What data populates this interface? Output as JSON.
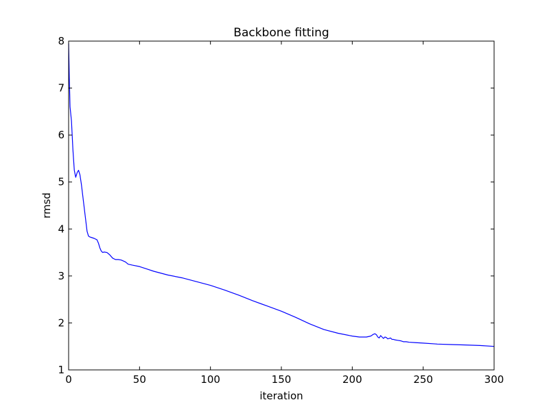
{
  "chart_data": {
    "type": "line",
    "title": "Backbone fitting",
    "xlabel": "iteration",
    "ylabel": "rmsd",
    "xlim": [
      0,
      300
    ],
    "ylim": [
      1,
      8
    ],
    "xticks": [
      0,
      50,
      100,
      150,
      200,
      250,
      300
    ],
    "yticks": [
      1,
      2,
      3,
      4,
      5,
      6,
      7,
      8
    ],
    "grid": false,
    "legend": "none",
    "series": [
      {
        "color": "#0000ff",
        "x": [
          0,
          0.5,
          1,
          2,
          3,
          4,
          5,
          6,
          7,
          8,
          9,
          10,
          11,
          12,
          13,
          14,
          15,
          16,
          18,
          20,
          21,
          22,
          23,
          24,
          25,
          27,
          29,
          31,
          33,
          35,
          37,
          40,
          42,
          45,
          50,
          55,
          60,
          65,
          70,
          80,
          90,
          100,
          110,
          120,
          130,
          140,
          150,
          160,
          170,
          180,
          190,
          200,
          205,
          210,
          213,
          215,
          216,
          217,
          218,
          219,
          220,
          221,
          222,
          223,
          224,
          225,
          226,
          227,
          228,
          229,
          230,
          232,
          234,
          236,
          238,
          240,
          245,
          250,
          260,
          270,
          280,
          290,
          300
        ],
        "y": [
          7.95,
          7.2,
          6.6,
          6.3,
          5.7,
          5.25,
          5.1,
          5.2,
          5.25,
          5.15,
          4.95,
          4.7,
          4.45,
          4.2,
          3.95,
          3.85,
          3.83,
          3.82,
          3.8,
          3.77,
          3.7,
          3.6,
          3.53,
          3.5,
          3.51,
          3.5,
          3.45,
          3.38,
          3.35,
          3.35,
          3.34,
          3.3,
          3.25,
          3.23,
          3.2,
          3.15,
          3.1,
          3.06,
          3.02,
          2.96,
          2.88,
          2.8,
          2.7,
          2.59,
          2.47,
          2.36,
          2.25,
          2.12,
          1.98,
          1.86,
          1.78,
          1.72,
          1.7,
          1.7,
          1.72,
          1.76,
          1.77,
          1.75,
          1.7,
          1.68,
          1.73,
          1.7,
          1.67,
          1.7,
          1.69,
          1.66,
          1.67,
          1.68,
          1.65,
          1.65,
          1.64,
          1.63,
          1.62,
          1.6,
          1.6,
          1.59,
          1.58,
          1.57,
          1.55,
          1.54,
          1.53,
          1.52,
          1.5
        ]
      }
    ]
  }
}
